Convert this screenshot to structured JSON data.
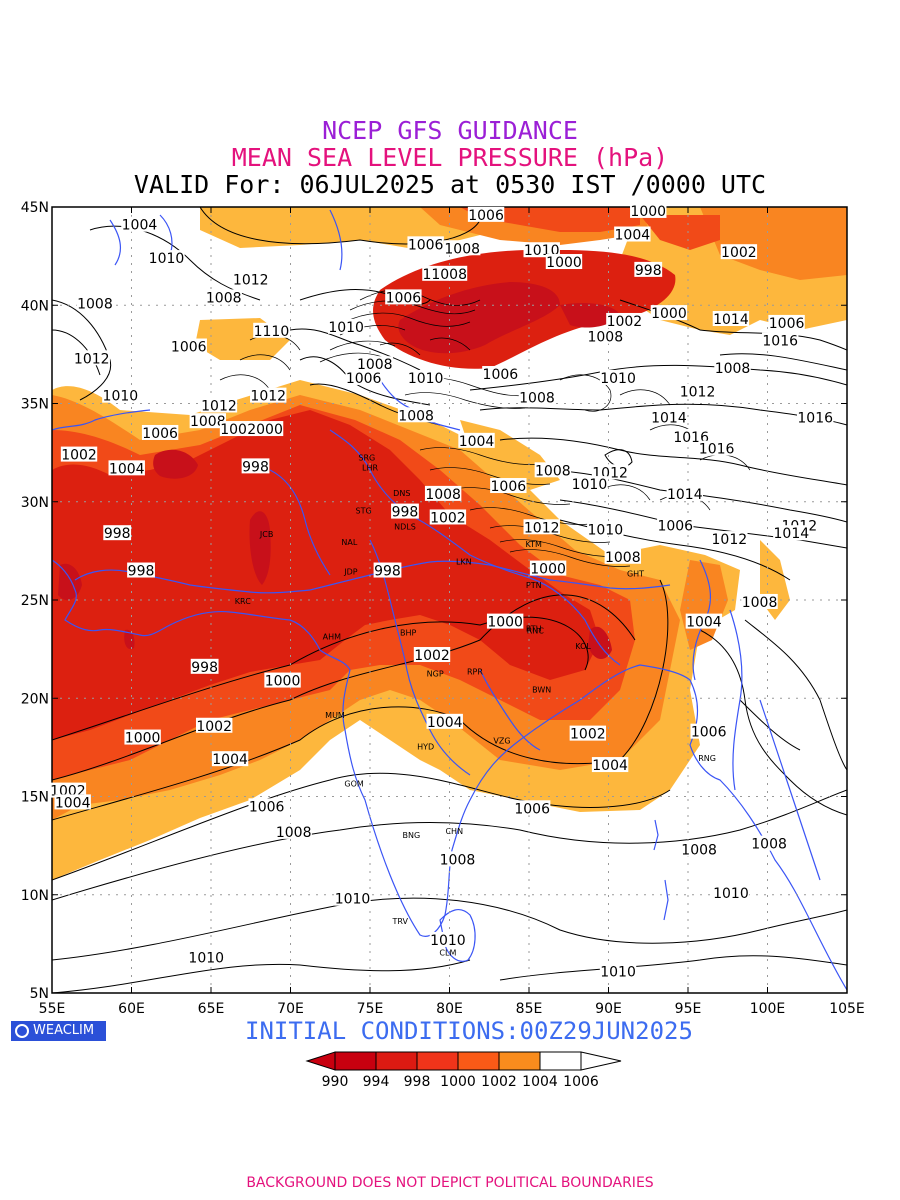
{
  "titles": {
    "line1": "NCEP GFS GUIDANCE",
    "line2": "MEAN SEA LEVEL PRESSURE (hPa)",
    "line3": "VALID For: 06JUL2025 at 0530 IST /0000 UTC"
  },
  "axes": {
    "lon_ticks": [
      "55E",
      "60E",
      "65E",
      "70E",
      "75E",
      "80E",
      "85E",
      "90E",
      "95E",
      "100E",
      "105E"
    ],
    "lat_ticks": [
      "45N",
      "40N",
      "35N",
      "30N",
      "25N",
      "20N",
      "15N",
      "10N",
      "5N"
    ]
  },
  "logo": {
    "text": "WEACLIM",
    "icon": "circle-logo-icon"
  },
  "initial_conditions": "INITIAL CONDITIONS:00Z29JUN2025",
  "colorbar": {
    "labels": [
      "990",
      "994",
      "998",
      "1000",
      "1002",
      "1004",
      "1006"
    ],
    "colors": [
      "#c8000f",
      "#dc1a12",
      "#f0341a",
      "#fa5a17",
      "#f98c1d",
      "#fdb23a",
      "#ffffff"
    ]
  },
  "colors": {
    "p_le_996": "#c8101a",
    "p_998": "#dc2010",
    "p_1000": "#f14a18",
    "p_1002": "#f98521",
    "p_1004": "#fdb73d",
    "p_ge_1006": "#ffffff",
    "coastline": "#3b55f5",
    "title1": "#9b1fd6",
    "title2": "#e4127d"
  },
  "contour_labels": [
    {
      "t": "1004",
      "lon": 60.5,
      "lat": 44.1
    },
    {
      "t": "1006",
      "lon": 82.3,
      "lat": 44.6
    },
    {
      "t": "1000",
      "lon": 92.5,
      "lat": 44.8
    },
    {
      "t": "1004",
      "lon": 91.5,
      "lat": 43.6
    },
    {
      "t": "1006",
      "lon": 78.5,
      "lat": 43.1
    },
    {
      "t": "1008",
      "lon": 80.8,
      "lat": 42.9
    },
    {
      "t": "1010",
      "lon": 62.2,
      "lat": 42.4
    },
    {
      "t": "1010",
      "lon": 85.8,
      "lat": 42.8
    },
    {
      "t": "1000",
      "lon": 87.2,
      "lat": 42.2
    },
    {
      "t": "1002",
      "lon": 98.2,
      "lat": 42.7
    },
    {
      "t": "998",
      "lon": 92.5,
      "lat": 41.8
    },
    {
      "t": "1012",
      "lon": 67.5,
      "lat": 41.3
    },
    {
      "t": "11008",
      "lon": 79.7,
      "lat": 41.6
    },
    {
      "t": "1008",
      "lon": 57.7,
      "lat": 40.1
    },
    {
      "t": "1008",
      "lon": 65.8,
      "lat": 40.4
    },
    {
      "t": "1006",
      "lon": 77.1,
      "lat": 40.4
    },
    {
      "t": "1000",
      "lon": 93.8,
      "lat": 39.6
    },
    {
      "t": "1014",
      "lon": 97.7,
      "lat": 39.3
    },
    {
      "t": "1006",
      "lon": 101.2,
      "lat": 39.1
    },
    {
      "t": "1002",
      "lon": 91,
      "lat": 39.2
    },
    {
      "t": "1110",
      "lon": 68.8,
      "lat": 38.7
    },
    {
      "t": "1010",
      "lon": 73.5,
      "lat": 38.9
    },
    {
      "t": "1008",
      "lon": 89.8,
      "lat": 38.4
    },
    {
      "t": "1016",
      "lon": 100.8,
      "lat": 38.2
    },
    {
      "t": "1006",
      "lon": 63.6,
      "lat": 37.9
    },
    {
      "t": "1012",
      "lon": 57.5,
      "lat": 37.3
    },
    {
      "t": "1008",
      "lon": 75.3,
      "lat": 37
    },
    {
      "t": "1006",
      "lon": 74.6,
      "lat": 36.3
    },
    {
      "t": "1010",
      "lon": 78.5,
      "lat": 36.3
    },
    {
      "t": "1006",
      "lon": 83.2,
      "lat": 36.5
    },
    {
      "t": "1008",
      "lon": 97.8,
      "lat": 36.8
    },
    {
      "t": "1010",
      "lon": 90.6,
      "lat": 36.3
    },
    {
      "t": "1012",
      "lon": 95.6,
      "lat": 35.6
    },
    {
      "t": "1012",
      "lon": 68.6,
      "lat": 35.4
    },
    {
      "t": "1010",
      "lon": 59.3,
      "lat": 35.4
    },
    {
      "t": "1012",
      "lon": 65.5,
      "lat": 34.9
    },
    {
      "t": "1008",
      "lon": 85.5,
      "lat": 35.3
    },
    {
      "t": "1014",
      "lon": 93.8,
      "lat": 34.3
    },
    {
      "t": "1016",
      "lon": 103,
      "lat": 34.3
    },
    {
      "t": "1008",
      "lon": 77.9,
      "lat": 34.4
    },
    {
      "t": "1008",
      "lon": 64.8,
      "lat": 34.1
    },
    {
      "t": "1002",
      "lon": 66.7,
      "lat": 33.7
    },
    {
      "t": "2000",
      "lon": 68.4,
      "lat": 33.7
    },
    {
      "t": "1006",
      "lon": 61.8,
      "lat": 33.5
    },
    {
      "t": "1004",
      "lon": 81.7,
      "lat": 33.1
    },
    {
      "t": "1016",
      "lon": 95.2,
      "lat": 33.3
    },
    {
      "t": "1016",
      "lon": 96.8,
      "lat": 32.7
    },
    {
      "t": "1002",
      "lon": 56.7,
      "lat": 32.4
    },
    {
      "t": "998",
      "lon": 67.8,
      "lat": 31.8
    },
    {
      "t": "1004",
      "lon": 59.7,
      "lat": 31.7
    },
    {
      "t": "1008",
      "lon": 86.5,
      "lat": 31.6
    },
    {
      "t": "1012",
      "lon": 90.1,
      "lat": 31.5
    },
    {
      "t": "1010",
      "lon": 88.8,
      "lat": 30.9
    },
    {
      "t": "1006",
      "lon": 83.7,
      "lat": 30.8
    },
    {
      "t": "1008",
      "lon": 79.6,
      "lat": 30.4
    },
    {
      "t": "1014",
      "lon": 94.8,
      "lat": 30.4
    },
    {
      "t": "998",
      "lon": 77.2,
      "lat": 29.5
    },
    {
      "t": "1002",
      "lon": 79.9,
      "lat": 29.2
    },
    {
      "t": "1012",
      "lon": 85.8,
      "lat": 28.7
    },
    {
      "t": "1010",
      "lon": 89.8,
      "lat": 28.6
    },
    {
      "t": "1006",
      "lon": 94.2,
      "lat": 28.8
    },
    {
      "t": "1012",
      "lon": 102,
      "lat": 28.8
    },
    {
      "t": "1014",
      "lon": 101.5,
      "lat": 28.4
    },
    {
      "t": "998",
      "lon": 59.1,
      "lat": 28.4
    },
    {
      "t": "1012",
      "lon": 97.6,
      "lat": 28.1
    },
    {
      "t": "1008",
      "lon": 90.9,
      "lat": 27.2
    },
    {
      "t": "998",
      "lon": 60.6,
      "lat": 26.5
    },
    {
      "t": "998",
      "lon": 76.1,
      "lat": 26.5
    },
    {
      "t": "1000",
      "lon": 86.2,
      "lat": 26.6
    },
    {
      "t": "1008",
      "lon": 99.5,
      "lat": 24.9
    },
    {
      "t": "1000",
      "lon": 83.5,
      "lat": 23.9
    },
    {
      "t": "1004",
      "lon": 96,
      "lat": 23.9
    },
    {
      "t": "1002",
      "lon": 78.9,
      "lat": 22.2
    },
    {
      "t": "998",
      "lon": 64.6,
      "lat": 21.6
    },
    {
      "t": "1000",
      "lon": 69.5,
      "lat": 20.9
    },
    {
      "t": "1004",
      "lon": 79.7,
      "lat": 18.8
    },
    {
      "t": "1002",
      "lon": 65.2,
      "lat": 18.6
    },
    {
      "t": "1000",
      "lon": 60.7,
      "lat": 18
    },
    {
      "t": "1002",
      "lon": 88.7,
      "lat": 18.2
    },
    {
      "t": "1006",
      "lon": 96.3,
      "lat": 18.3
    },
    {
      "t": "1004",
      "lon": 66.2,
      "lat": 16.9
    },
    {
      "t": "1004",
      "lon": 90.1,
      "lat": 16.6
    },
    {
      "t": "1002",
      "lon": 56,
      "lat": 15.3
    },
    {
      "t": "1004",
      "lon": 56.3,
      "lat": 14.7
    },
    {
      "t": "1006",
      "lon": 68.5,
      "lat": 14.5
    },
    {
      "t": "1006",
      "lon": 85.2,
      "lat": 14.4
    },
    {
      "t": "1008",
      "lon": 70.2,
      "lat": 13.2
    },
    {
      "t": "1008",
      "lon": 95.7,
      "lat": 12.3
    },
    {
      "t": "1008",
      "lon": 100.1,
      "lat": 12.6
    },
    {
      "t": "1008",
      "lon": 80.5,
      "lat": 11.8
    },
    {
      "t": "1010",
      "lon": 73.9,
      "lat": 9.8
    },
    {
      "t": "1010",
      "lon": 97.7,
      "lat": 10.1
    },
    {
      "t": "1010",
      "lon": 79.9,
      "lat": 7.7
    },
    {
      "t": "1010",
      "lon": 64.7,
      "lat": 6.8
    },
    {
      "t": "1010",
      "lon": 90.6,
      "lat": 6.1
    }
  ],
  "cities": [
    {
      "t": "SRG",
      "lon": 74.8,
      "lat": 32.1
    },
    {
      "t": "LHR",
      "lon": 75.0,
      "lat": 31.6
    },
    {
      "t": "DNS",
      "lon": 77.0,
      "lat": 30.3
    },
    {
      "t": "STG",
      "lon": 74.6,
      "lat": 29.4
    },
    {
      "t": "NDLS",
      "lon": 77.2,
      "lat": 28.6
    },
    {
      "t": "NAL",
      "lon": 73.7,
      "lat": 27.8
    },
    {
      "t": "JCB",
      "lon": 68.5,
      "lat": 28.2
    },
    {
      "t": "JDP",
      "lon": 73.8,
      "lat": 26.3
    },
    {
      "t": "LKN",
      "lon": 80.9,
      "lat": 26.8
    },
    {
      "t": "PTN",
      "lon": 85.3,
      "lat": 25.6
    },
    {
      "t": "KRC",
      "lon": 67.0,
      "lat": 24.8
    },
    {
      "t": "AHM",
      "lon": 72.6,
      "lat": 23.0
    },
    {
      "t": "BHP",
      "lon": 77.4,
      "lat": 23.2
    },
    {
      "t": "RTH",
      "lon": 85.3,
      "lat": 23.4
    },
    {
      "t": "RNC",
      "lon": 85.4,
      "lat": 23.3
    },
    {
      "t": "KOL",
      "lon": 88.4,
      "lat": 22.5
    },
    {
      "t": "NGP",
      "lon": 79.1,
      "lat": 21.1
    },
    {
      "t": "RPR",
      "lon": 81.6,
      "lat": 21.2
    },
    {
      "t": "BWN",
      "lon": 85.8,
      "lat": 20.3
    },
    {
      "t": "MUM",
      "lon": 72.8,
      "lat": 19.0
    },
    {
      "t": "HYD",
      "lon": 78.5,
      "lat": 17.4
    },
    {
      "t": "VZG",
      "lon": 83.3,
      "lat": 17.7
    },
    {
      "t": "GOM",
      "lon": 74.0,
      "lat": 15.5
    },
    {
      "t": "CHN",
      "lon": 80.3,
      "lat": 13.1
    },
    {
      "t": "BNG",
      "lon": 77.6,
      "lat": 12.9
    },
    {
      "t": "TRV",
      "lon": 76.9,
      "lat": 8.5
    },
    {
      "t": "CLM",
      "lon": 79.9,
      "lat": 6.9
    },
    {
      "t": "GHT",
      "lon": 91.7,
      "lat": 26.2
    },
    {
      "t": "KTM",
      "lon": 85.3,
      "lat": 27.7
    },
    {
      "t": "RNG",
      "lon": 96.2,
      "lat": 16.8
    }
  ]
}
